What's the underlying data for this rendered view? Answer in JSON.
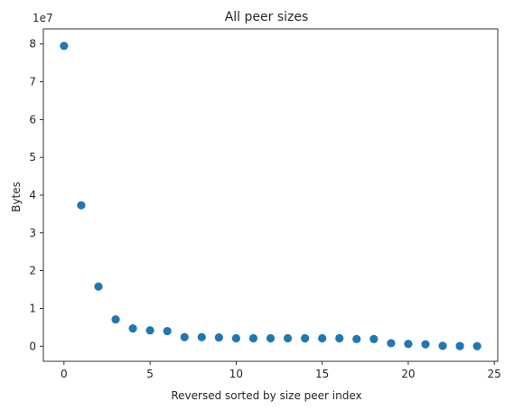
{
  "chart_data": {
    "type": "scatter",
    "title": "All peer sizes",
    "xlabel": "Reversed sorted by size peer index",
    "ylabel": "Bytes",
    "y_scale_label": "1e7",
    "xlim": [
      -1.2,
      25.2
    ],
    "ylim": [
      -0.4,
      8.4
    ],
    "x_ticks": [
      0,
      5,
      10,
      15,
      20,
      25
    ],
    "y_ticks": [
      0,
      1,
      2,
      3,
      4,
      5,
      6,
      7,
      8
    ],
    "grid": false,
    "marker_color": "#1f77b4",
    "x": [
      0,
      1,
      2,
      3,
      4,
      5,
      6,
      7,
      8,
      9,
      10,
      11,
      12,
      13,
      14,
      15,
      16,
      17,
      18,
      19,
      20,
      21,
      22,
      23,
      24
    ],
    "y": [
      7.95,
      3.73,
      1.58,
      0.71,
      0.47,
      0.42,
      0.4,
      0.24,
      0.24,
      0.23,
      0.21,
      0.21,
      0.21,
      0.21,
      0.21,
      0.21,
      0.21,
      0.19,
      0.19,
      0.08,
      0.06,
      0.05,
      0.01,
      0.005,
      0.0
    ]
  }
}
